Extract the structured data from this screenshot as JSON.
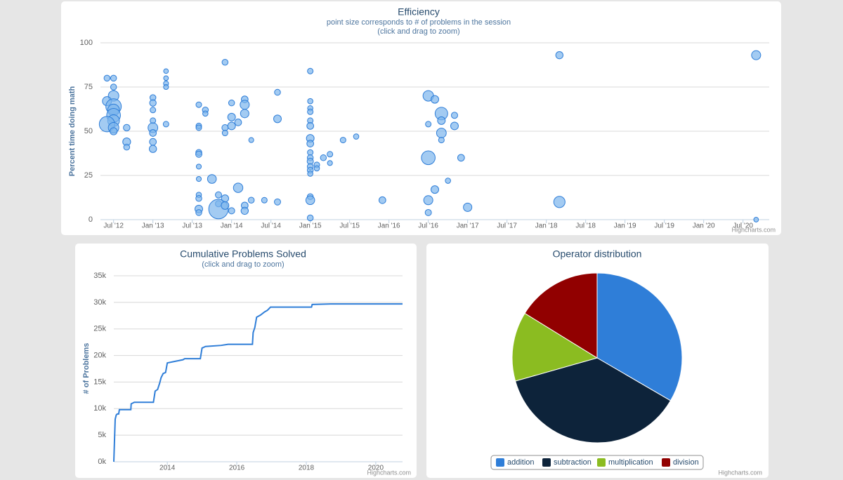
{
  "chart_data": [
    {
      "type": "bubble",
      "title": "Efficiency",
      "subtitle": "point size corresponds to # of problems in the session",
      "subtitle2": "(click and drag to zoom)",
      "y_label": "Percent time doing math",
      "credits": "Highcharts.com",
      "color": "#7cb5ec",
      "grid": true,
      "xlim": [
        "2012-05",
        "2020-11"
      ],
      "xticks": [
        {
          "value": "2012-07",
          "label": "Jul '12"
        },
        {
          "value": "2013-01",
          "label": "Jan '13"
        },
        {
          "value": "2013-07",
          "label": "Jul '13"
        },
        {
          "value": "2014-01",
          "label": "Jan '14"
        },
        {
          "value": "2014-07",
          "label": "Jul '14"
        },
        {
          "value": "2015-01",
          "label": "Jan '15"
        },
        {
          "value": "2015-07",
          "label": "Jul '15"
        },
        {
          "value": "2016-01",
          "label": "Jan '16"
        },
        {
          "value": "2016-07",
          "label": "Jul '16"
        },
        {
          "value": "2017-01",
          "label": "Jan '17"
        },
        {
          "value": "2017-07",
          "label": "Jul '17"
        },
        {
          "value": "2018-01",
          "label": "Jan '18"
        },
        {
          "value": "2018-07",
          "label": "Jul '18"
        },
        {
          "value": "2019-01",
          "label": "Jan '19"
        },
        {
          "value": "2019-07",
          "label": "Jul '19"
        },
        {
          "value": "2020-01",
          "label": "Jan '20"
        },
        {
          "value": "2020-07",
          "label": "Jul '20"
        }
      ],
      "ylim": [
        0,
        100
      ],
      "yticks": [
        0,
        25,
        50,
        75,
        100
      ],
      "x": [
        "2012-06",
        "2012-07",
        "2012-07",
        "2012-07",
        "2012-06",
        "2012-07",
        "2012-07",
        "2012-07",
        "2012-07",
        "2012-06",
        "2012-07",
        "2012-07",
        "2012-09",
        "2012-09",
        "2012-09",
        "2013-01",
        "2013-01",
        "2013-01",
        "2013-01",
        "2013-01",
        "2013-01",
        "2013-01",
        "2013-01",
        "2013-03",
        "2013-03",
        "2013-03",
        "2013-03",
        "2013-03",
        "2013-08",
        "2013-08",
        "2013-08",
        "2013-08",
        "2013-08",
        "2013-08",
        "2013-08",
        "2013-08",
        "2013-08",
        "2013-08",
        "2013-08",
        "2013-09",
        "2013-09",
        "2013-10",
        "2013-11",
        "2013-11",
        "2013-11",
        "2013-12",
        "2013-12",
        "2013-12",
        "2013-12",
        "2013-12",
        "2014-01",
        "2014-01",
        "2014-01",
        "2014-01",
        "2014-02",
        "2014-02",
        "2014-03",
        "2014-03",
        "2014-03",
        "2014-03",
        "2014-03",
        "2014-04",
        "2014-04",
        "2014-06",
        "2014-08",
        "2014-08",
        "2014-08",
        "2015-01",
        "2015-01",
        "2015-01",
        "2015-01",
        "2015-01",
        "2015-01",
        "2015-01",
        "2015-01",
        "2015-01",
        "2015-01",
        "2015-01",
        "2015-01",
        "2015-01",
        "2015-01",
        "2015-01",
        "2015-01",
        "2015-01",
        "2015-02",
        "2015-02",
        "2015-03",
        "2015-04",
        "2015-04",
        "2015-06",
        "2015-08",
        "2015-12",
        "2016-07",
        "2016-07",
        "2016-07",
        "2016-07",
        "2016-07",
        "2016-08",
        "2016-08",
        "2016-09",
        "2016-09",
        "2016-09",
        "2016-09",
        "2016-10",
        "2016-11",
        "2016-11",
        "2016-12",
        "2017-01",
        "2018-03",
        "2018-03",
        "2020-09",
        "2020-09"
      ],
      "values": [
        80,
        80,
        75,
        70,
        67,
        64,
        62,
        59,
        56,
        54,
        52,
        50,
        52,
        44,
        41,
        69,
        66,
        62,
        56,
        52,
        49,
        44,
        40,
        84,
        80,
        77,
        75,
        54,
        65,
        53,
        52,
        38,
        37,
        30,
        23,
        14,
        12,
        6,
        4,
        62,
        60,
        23,
        14,
        9,
        6,
        89,
        52,
        49,
        12,
        8,
        58,
        53,
        66,
        5,
        18,
        55,
        68,
        65,
        60,
        8,
        5,
        45,
        11,
        11,
        72,
        57,
        10,
        84,
        67,
        63,
        61,
        56,
        53,
        46,
        43,
        38,
        35,
        33,
        30,
        28,
        26,
        13,
        11,
        1,
        31,
        29,
        35,
        37,
        32,
        45,
        47,
        11,
        70,
        35,
        11,
        4,
        54,
        68,
        17,
        60,
        56,
        49,
        45,
        22,
        59,
        53,
        35,
        7,
        93,
        10,
        93,
        0
      ],
      "sizes": [
        25,
        25,
        25,
        150,
        100,
        400,
        200,
        300,
        200,
        400,
        150,
        50,
        36,
        64,
        25,
        25,
        36,
        20,
        20,
        120,
        40,
        40,
        50,
        9,
        9,
        12,
        12,
        20,
        20,
        20,
        20,
        25,
        30,
        12,
        12,
        16,
        25,
        60,
        25,
        25,
        16,
        90,
        30,
        30,
        700,
        25,
        30,
        20,
        50,
        60,
        60,
        60,
        25,
        30,
        110,
        40,
        40,
        100,
        80,
        40,
        50,
        12,
        25,
        20,
        25,
        60,
        30,
        20,
        16,
        16,
        20,
        20,
        40,
        60,
        40,
        20,
        25,
        30,
        25,
        25,
        16,
        25,
        90,
        25,
        20,
        16,
        25,
        20,
        12,
        20,
        16,
        40,
        150,
        300,
        100,
        30,
        20,
        60,
        60,
        240,
        60,
        120,
        20,
        16,
        30,
        60,
        40,
        80,
        50,
        180,
        100,
        9
      ]
    },
    {
      "type": "line",
      "title": "Cumulative Problems Solved",
      "subtitle": "(click and drag to zoom)",
      "y_label": "# of Problems",
      "credits": "Highcharts.com",
      "color": "#2f7ed8",
      "grid": true,
      "xlim": [
        2012.46,
        2020.77
      ],
      "xticks": [
        2014,
        2016,
        2018,
        2020
      ],
      "ylim": [
        0,
        35000
      ],
      "yticks": [
        {
          "value": 0,
          "label": "0k"
        },
        {
          "value": 5000,
          "label": "5k"
        },
        {
          "value": 10000,
          "label": "10k"
        },
        {
          "value": 15000,
          "label": "15k"
        },
        {
          "value": 20000,
          "label": "20k"
        },
        {
          "value": 25000,
          "label": "25k"
        },
        {
          "value": 30000,
          "label": "30k"
        },
        {
          "value": 35000,
          "label": "35k"
        }
      ],
      "x": [
        2012.46,
        2012.5,
        2012.53,
        2012.56,
        2012.6,
        2012.62,
        2012.95,
        2012.96,
        2013.05,
        2013.6,
        2013.65,
        2013.72,
        2013.78,
        2013.82,
        2013.88,
        2013.95,
        2014.0,
        2014.15,
        2014.3,
        2014.45,
        2014.5,
        2014.95,
        2015.0,
        2015.1,
        2015.55,
        2015.75,
        2016.45,
        2016.47,
        2016.52,
        2016.57,
        2016.68,
        2016.8,
        2016.88,
        2016.97,
        2018.15,
        2018.17,
        2018.7,
        2020.77
      ],
      "values": [
        0,
        8000,
        8800,
        9000,
        9000,
        9800,
        9800,
        10900,
        11200,
        11200,
        13300,
        13600,
        14800,
        15800,
        16600,
        16800,
        18600,
        18800,
        19000,
        19200,
        19400,
        19400,
        21400,
        21700,
        21900,
        22100,
        22100,
        24300,
        25300,
        27200,
        27600,
        28200,
        28500,
        29100,
        29100,
        29600,
        29700,
        29700
      ]
    },
    {
      "type": "pie",
      "title": "Operator distribution",
      "credits": "Highcharts.com",
      "legend": "bottom",
      "categories": [
        "addition",
        "subtraction",
        "multiplication",
        "division"
      ],
      "values": [
        33.4,
        37.2,
        13.2,
        16.2
      ],
      "colors": [
        "#2f7ed8",
        "#0d233a",
        "#8bbc21",
        "#910000"
      ]
    }
  ]
}
